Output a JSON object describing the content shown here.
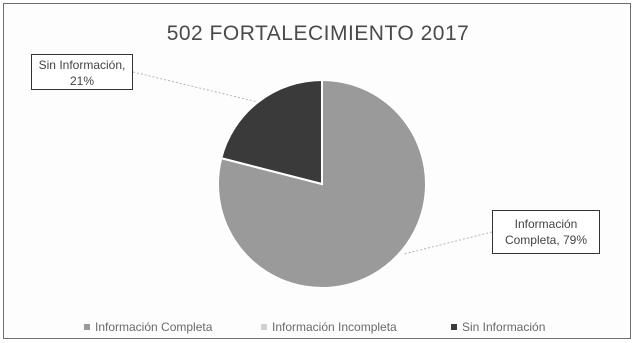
{
  "chart_data": {
    "type": "pie",
    "title": "502  FORTALECIMIENTO 2017",
    "categories": [
      "Información Completa",
      "Información Incompleta",
      "Sin Información"
    ],
    "values": [
      79,
      0,
      21
    ],
    "unit": "%",
    "colors": [
      "#9a9a9a",
      "#d0d0d0",
      "#3a3a3a"
    ],
    "data_labels": [
      {
        "category": "Información Completa",
        "line1": "Información",
        "line2": "Completa, 79%"
      },
      {
        "category": "Sin Información",
        "line1": "Sin Información,",
        "line2": "21%"
      }
    ],
    "legend": {
      "position": "bottom",
      "items": [
        "Información Completa",
        "Información Incompleta",
        "Sin Información"
      ]
    },
    "start_angle_deg": 0,
    "direction": "clockwise"
  }
}
